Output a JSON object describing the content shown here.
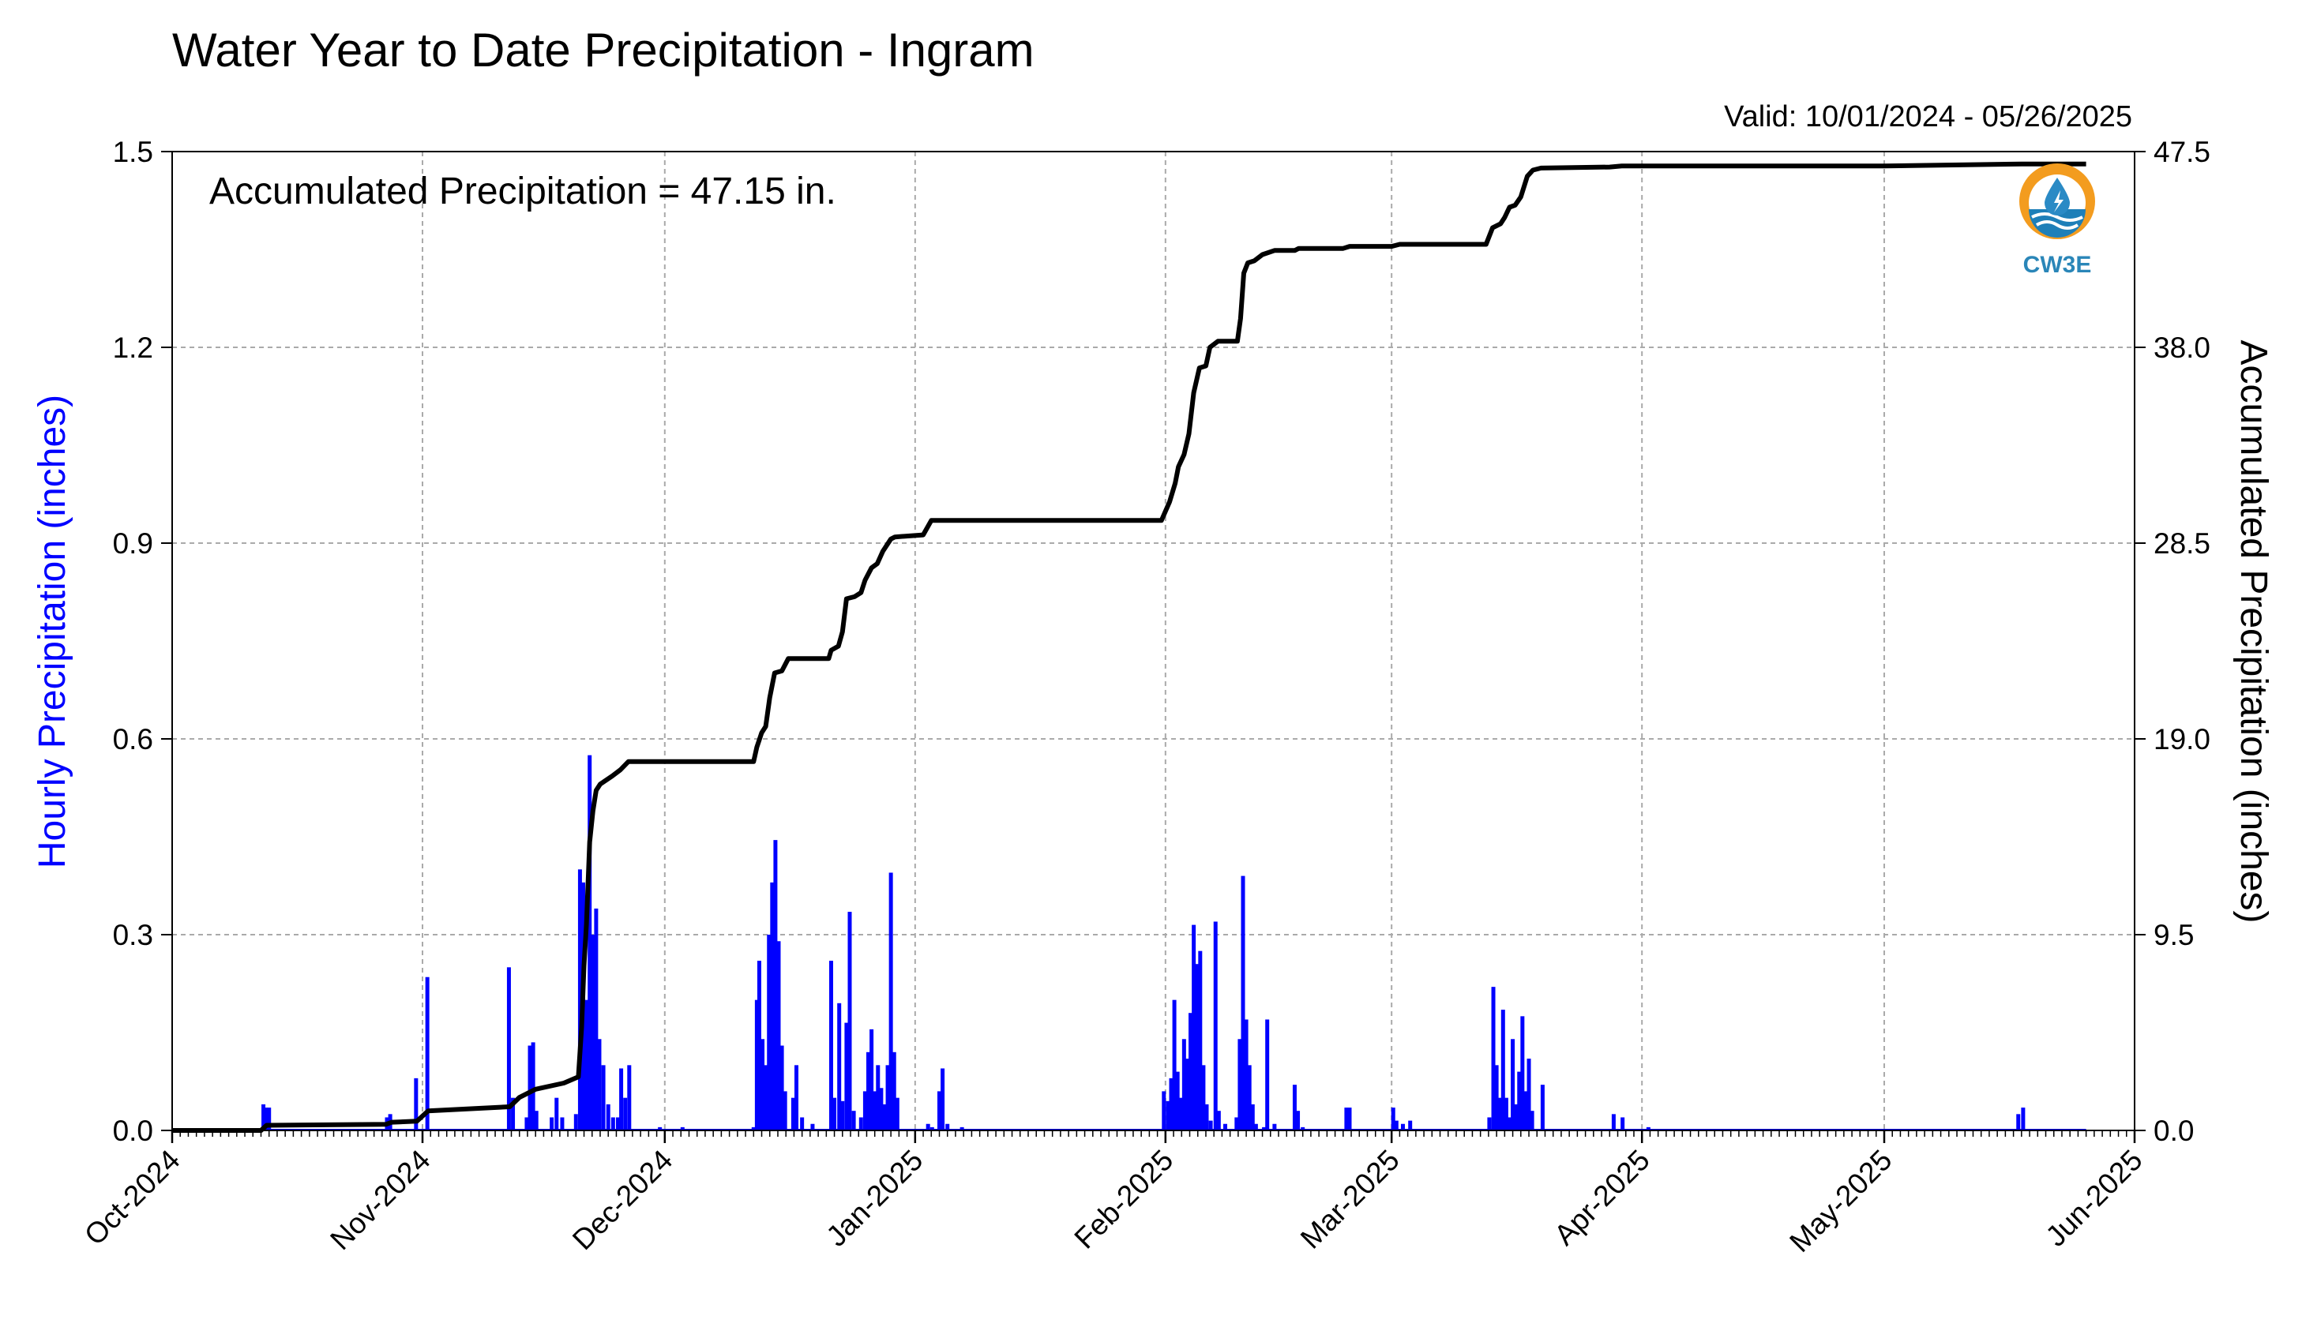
{
  "chart_data": {
    "type": "bar",
    "title": "Water Year to Date Precipitation - Ingram",
    "subtitle": "Valid: 10/01/2024 - 05/26/2025",
    "annotation": "Accumulated Precipitation = 47.15 in.",
    "logo_text": "CW3E",
    "ylabel": "Hourly Precipitation (inches)",
    "y2label": "Accumulated Precipitation (inches)",
    "xlim": [
      0,
      243
    ],
    "ylim": [
      0,
      1.5
    ],
    "y2lim": [
      0,
      47.5
    ],
    "yticks": [
      "0.0",
      "0.3",
      "0.6",
      "0.9",
      "1.2",
      "1.5"
    ],
    "y2ticks": [
      "0.0",
      "9.5",
      "19.0",
      "28.5",
      "38.0",
      "47.5"
    ],
    "x_tick_labels": [
      "Oct-2024",
      "Nov-2024",
      "Dec-2024",
      "Jan-2025",
      "Feb-2025",
      "Mar-2025",
      "Apr-2025",
      "May-2025",
      "Jun-2025"
    ],
    "x_tick_days": [
      0,
      31,
      61,
      92,
      123,
      151,
      182,
      212,
      243
    ],
    "grid": true,
    "series": [
      {
        "name": "Hourly Precipitation (inches)",
        "color": "#0000ff",
        "type": "bar",
        "points": [
          [
            11.3,
            0.04
          ],
          [
            11.6,
            0.035
          ],
          [
            12.0,
            0.035
          ],
          [
            26.6,
            0.02
          ],
          [
            27.0,
            0.025
          ],
          [
            30.2,
            0.08
          ],
          [
            31.6,
            0.235
          ],
          [
            41.7,
            0.25
          ],
          [
            42.2,
            0.05
          ],
          [
            43.9,
            0.02
          ],
          [
            44.3,
            0.13
          ],
          [
            44.7,
            0.135
          ],
          [
            45.1,
            0.03
          ],
          [
            47.0,
            0.02
          ],
          [
            47.6,
            0.05
          ],
          [
            48.3,
            0.02
          ],
          [
            50.0,
            0.025
          ],
          [
            50.5,
            0.4
          ],
          [
            50.9,
            0.38
          ],
          [
            51.3,
            0.2
          ],
          [
            51.7,
            0.575
          ],
          [
            52.1,
            0.3
          ],
          [
            52.5,
            0.34
          ],
          [
            52.9,
            0.14
          ],
          [
            53.4,
            0.1
          ],
          [
            54.0,
            0.04
          ],
          [
            54.6,
            0.02
          ],
          [
            55.2,
            0.02
          ],
          [
            55.6,
            0.095
          ],
          [
            56.1,
            0.05
          ],
          [
            56.6,
            0.1
          ],
          [
            60.4,
            0.005
          ],
          [
            63.2,
            0.005
          ],
          [
            72.0,
            0.005
          ],
          [
            72.4,
            0.2
          ],
          [
            72.7,
            0.26
          ],
          [
            73.1,
            0.14
          ],
          [
            73.5,
            0.1
          ],
          [
            73.9,
            0.3
          ],
          [
            74.3,
            0.38
          ],
          [
            74.7,
            0.445
          ],
          [
            75.1,
            0.29
          ],
          [
            75.5,
            0.13
          ],
          [
            75.9,
            0.06
          ],
          [
            76.9,
            0.05
          ],
          [
            77.3,
            0.1
          ],
          [
            78.0,
            0.02
          ],
          [
            79.3,
            0.01
          ],
          [
            81.6,
            0.26
          ],
          [
            82.0,
            0.05
          ],
          [
            82.6,
            0.195
          ],
          [
            83.0,
            0.045
          ],
          [
            83.5,
            0.165
          ],
          [
            83.9,
            0.335
          ],
          [
            84.4,
            0.03
          ],
          [
            85.3,
            0.02
          ],
          [
            85.8,
            0.06
          ],
          [
            86.2,
            0.12
          ],
          [
            86.6,
            0.155
          ],
          [
            87.0,
            0.06
          ],
          [
            87.4,
            0.1
          ],
          [
            87.8,
            0.065
          ],
          [
            88.2,
            0.04
          ],
          [
            88.6,
            0.1
          ],
          [
            89.0,
            0.395
          ],
          [
            89.4,
            0.12
          ],
          [
            89.8,
            0.05
          ],
          [
            93.6,
            0.01
          ],
          [
            94.1,
            0.005
          ],
          [
            95.0,
            0.06
          ],
          [
            95.4,
            0.095
          ],
          [
            96.0,
            0.01
          ],
          [
            97.8,
            0.005
          ],
          [
            122.8,
            0.06
          ],
          [
            123.3,
            0.045
          ],
          [
            123.7,
            0.08
          ],
          [
            124.1,
            0.2
          ],
          [
            124.5,
            0.09
          ],
          [
            124.9,
            0.05
          ],
          [
            125.3,
            0.14
          ],
          [
            125.7,
            0.11
          ],
          [
            126.1,
            0.18
          ],
          [
            126.5,
            0.315
          ],
          [
            126.9,
            0.255
          ],
          [
            127.3,
            0.275
          ],
          [
            127.7,
            0.1
          ],
          [
            128.1,
            0.04
          ],
          [
            128.6,
            0.015
          ],
          [
            129.2,
            0.32
          ],
          [
            129.6,
            0.03
          ],
          [
            130.4,
            0.01
          ],
          [
            131.8,
            0.02
          ],
          [
            132.2,
            0.14
          ],
          [
            132.6,
            0.39
          ],
          [
            133.0,
            0.17
          ],
          [
            133.4,
            0.1
          ],
          [
            133.8,
            0.04
          ],
          [
            134.2,
            0.01
          ],
          [
            135.2,
            0.005
          ],
          [
            135.6,
            0.17
          ],
          [
            136.5,
            0.01
          ],
          [
            139.0,
            0.07
          ],
          [
            139.4,
            0.03
          ],
          [
            140.0,
            0.005
          ],
          [
            145.4,
            0.035
          ],
          [
            145.8,
            0.035
          ],
          [
            151.2,
            0.035
          ],
          [
            151.6,
            0.015
          ],
          [
            152.4,
            0.01
          ],
          [
            153.3,
            0.015
          ],
          [
            163.1,
            0.02
          ],
          [
            163.6,
            0.22
          ],
          [
            164.0,
            0.1
          ],
          [
            164.4,
            0.05
          ],
          [
            164.8,
            0.185
          ],
          [
            165.2,
            0.05
          ],
          [
            165.6,
            0.02
          ],
          [
            166.0,
            0.14
          ],
          [
            166.4,
            0.04
          ],
          [
            166.8,
            0.09
          ],
          [
            167.2,
            0.175
          ],
          [
            167.6,
            0.06
          ],
          [
            168.0,
            0.11
          ],
          [
            168.4,
            0.03
          ],
          [
            169.7,
            0.07
          ],
          [
            178.5,
            0.025
          ],
          [
            179.6,
            0.02
          ],
          [
            182.8,
            0.005
          ],
          [
            228.6,
            0.025
          ],
          [
            229.2,
            0.035
          ]
        ]
      },
      {
        "name": "Accumulated Precipitation (inches)",
        "color": "#000000",
        "type": "line",
        "points": [
          [
            0,
            0.0
          ],
          [
            11.0,
            0.0
          ],
          [
            11.7,
            0.25
          ],
          [
            26.5,
            0.3
          ],
          [
            27.2,
            0.4
          ],
          [
            30.3,
            0.45
          ],
          [
            31.7,
            0.95
          ],
          [
            41.8,
            1.15
          ],
          [
            43.0,
            1.6
          ],
          [
            45.0,
            2.0
          ],
          [
            48.5,
            2.3
          ],
          [
            50.3,
            2.6
          ],
          [
            50.7,
            5.0
          ],
          [
            51.0,
            8.0
          ],
          [
            51.3,
            10.0
          ],
          [
            51.7,
            14.0
          ],
          [
            52.1,
            15.5
          ],
          [
            52.5,
            16.5
          ],
          [
            53.0,
            16.8
          ],
          [
            54.5,
            17.2
          ],
          [
            55.5,
            17.5
          ],
          [
            56.5,
            17.9
          ],
          [
            57.5,
            17.9
          ],
          [
            72.0,
            17.9
          ],
          [
            72.4,
            18.6
          ],
          [
            73.0,
            19.3
          ],
          [
            73.5,
            19.6
          ],
          [
            74.0,
            21.0
          ],
          [
            74.6,
            22.2
          ],
          [
            75.5,
            22.3
          ],
          [
            76.3,
            22.9
          ],
          [
            81.3,
            22.9
          ],
          [
            81.6,
            23.3
          ],
          [
            82.5,
            23.5
          ],
          [
            83.0,
            24.2
          ],
          [
            83.5,
            25.8
          ],
          [
            84.5,
            25.9
          ],
          [
            85.3,
            26.1
          ],
          [
            85.8,
            26.7
          ],
          [
            86.6,
            27.3
          ],
          [
            87.3,
            27.5
          ],
          [
            88.0,
            28.1
          ],
          [
            89.0,
            28.7
          ],
          [
            89.5,
            28.8
          ],
          [
            93.0,
            28.9
          ],
          [
            94.0,
            29.6
          ],
          [
            122.5,
            29.6
          ],
          [
            123.5,
            30.5
          ],
          [
            124.2,
            31.4
          ],
          [
            124.6,
            32.2
          ],
          [
            125.3,
            32.8
          ],
          [
            125.9,
            33.8
          ],
          [
            126.5,
            35.8
          ],
          [
            127.2,
            37.0
          ],
          [
            128.0,
            37.1
          ],
          [
            128.5,
            38.0
          ],
          [
            129.5,
            38.3
          ],
          [
            131.9,
            38.3
          ],
          [
            132.3,
            39.4
          ],
          [
            132.7,
            41.6
          ],
          [
            133.2,
            42.1
          ],
          [
            134.0,
            42.2
          ],
          [
            135.0,
            42.5
          ],
          [
            136.5,
            42.7
          ],
          [
            139.0,
            42.7
          ],
          [
            139.5,
            42.8
          ],
          [
            145.0,
            42.8
          ],
          [
            145.8,
            42.9
          ],
          [
            151.0,
            42.9
          ],
          [
            152.0,
            43.0
          ],
          [
            162.7,
            43.0
          ],
          [
            163.5,
            43.8
          ],
          [
            164.5,
            44.0
          ],
          [
            165.0,
            44.3
          ],
          [
            165.6,
            44.8
          ],
          [
            166.3,
            44.9
          ],
          [
            167.0,
            45.3
          ],
          [
            167.8,
            46.3
          ],
          [
            168.5,
            46.6
          ],
          [
            169.5,
            46.7
          ],
          [
            178.0,
            46.75
          ],
          [
            179.5,
            46.8
          ],
          [
            212.0,
            46.8
          ],
          [
            229.0,
            46.9
          ],
          [
            237.0,
            46.9
          ]
        ]
      }
    ]
  }
}
